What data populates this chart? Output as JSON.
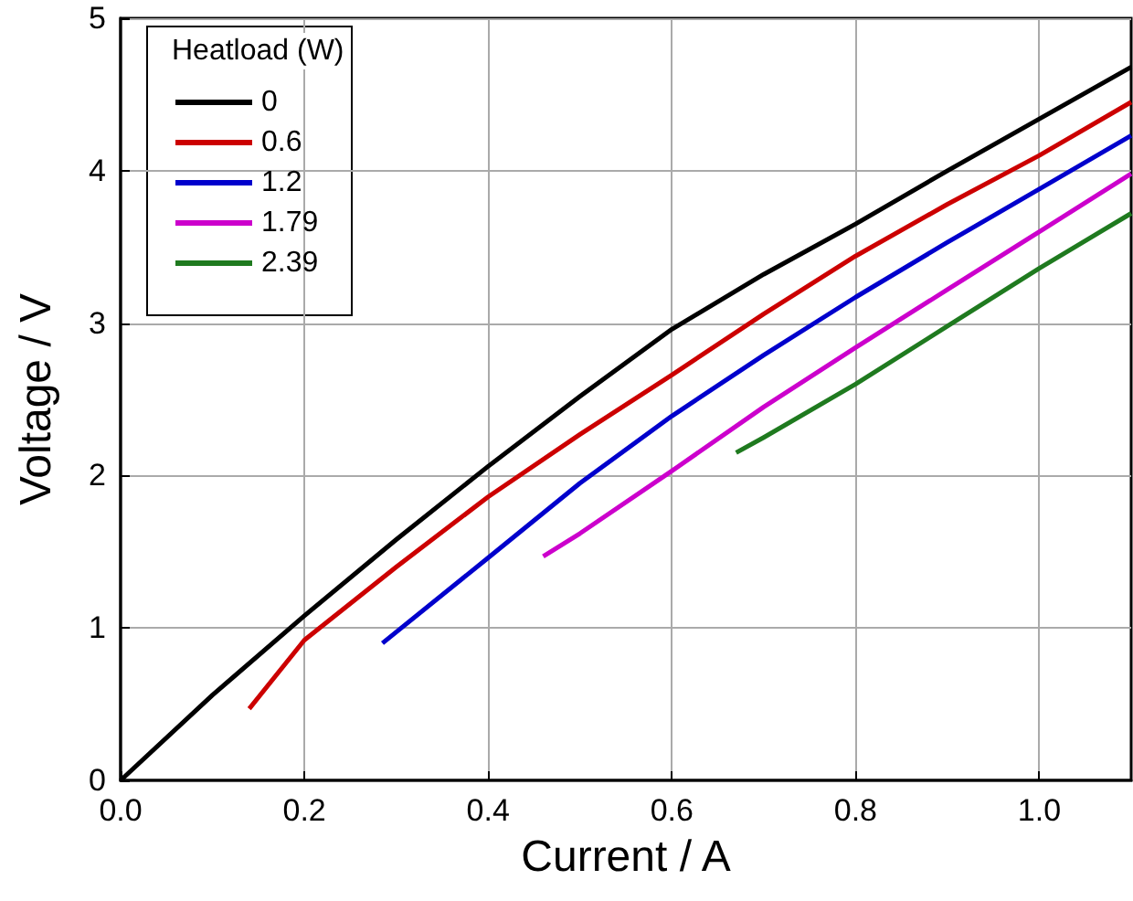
{
  "chart_data": {
    "type": "line",
    "xlabel": "Current / A",
    "ylabel": "Voltage / V",
    "legend_title": "Heatload (W)",
    "xlim": [
      0,
      1.1
    ],
    "xticks": [
      {
        "value": 0,
        "label": "0.0"
      },
      0.2,
      0.4,
      0.6,
      0.8,
      {
        "value": 1,
        "label": "1.0"
      }
    ],
    "ylim": [
      0,
      5
    ],
    "yticks": [
      0,
      1,
      2,
      3,
      4,
      5
    ],
    "grid": true,
    "legend": "top left",
    "marker": "none",
    "line_style": "solid",
    "series": [
      {
        "name": "0",
        "color": "#000000",
        "x": [
          0,
          0.1,
          0.2,
          0.3,
          0.4,
          0.5,
          0.6,
          0.7,
          0.8,
          0.9,
          1.0,
          1.1
        ],
        "values": [
          0,
          0.56,
          1.08,
          1.58,
          2.06,
          2.52,
          2.96,
          3.32,
          3.65,
          4.0,
          4.34,
          4.68
        ]
      },
      {
        "name": "0.6",
        "color": "#cc0000",
        "x": [
          0.14,
          0.2,
          0.3,
          0.4,
          0.5,
          0.6,
          0.7,
          0.8,
          0.9,
          1.0,
          1.1
        ],
        "values": [
          0.47,
          0.92,
          1.4,
          1.86,
          2.27,
          2.66,
          3.06,
          3.44,
          3.78,
          4.1,
          4.45
        ]
      },
      {
        "name": "1.2",
        "color": "#0000cc",
        "x": [
          0.285,
          0.4,
          0.5,
          0.6,
          0.7,
          0.8,
          0.9,
          1.0,
          1.1
        ],
        "values": [
          0.9,
          1.46,
          1.95,
          2.39,
          2.79,
          3.17,
          3.53,
          3.88,
          4.23
        ]
      },
      {
        "name": "1.79",
        "color": "#cc00cc",
        "x": [
          0.46,
          0.5,
          0.6,
          0.7,
          0.8,
          0.9,
          1.0,
          1.1
        ],
        "values": [
          1.47,
          1.62,
          2.03,
          2.45,
          2.84,
          3.22,
          3.6,
          3.98
        ]
      },
      {
        "name": "2.39",
        "color": "#1f7a1f",
        "x": [
          0.67,
          0.7,
          0.8,
          0.9,
          1.0,
          1.1
        ],
        "values": [
          2.15,
          2.25,
          2.6,
          2.98,
          3.36,
          3.72
        ]
      }
    ]
  }
}
